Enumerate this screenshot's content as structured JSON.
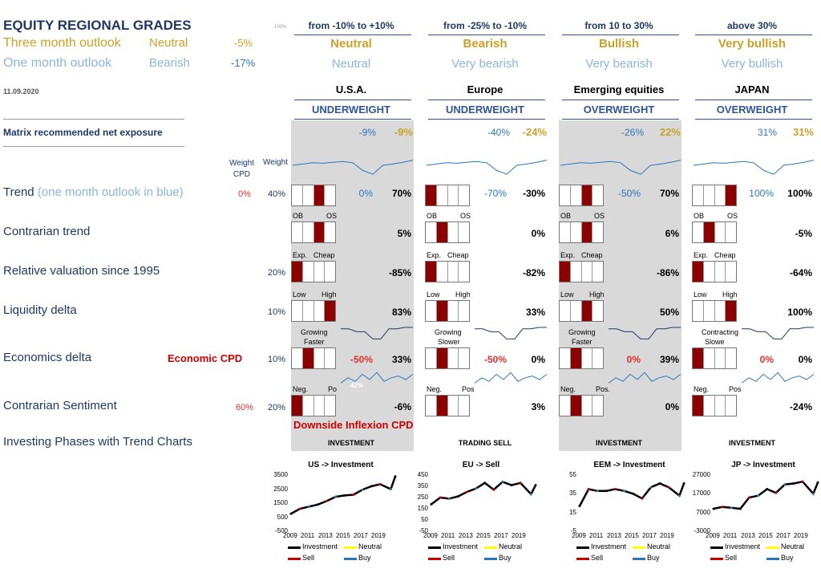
{
  "title": "EQUITY REGIONAL GRADES",
  "date": "11.09.2020",
  "tiny_pct": "100%",
  "outlook": {
    "three": {
      "label": "Three month outlook",
      "grade": "Neutral",
      "value": "-5%"
    },
    "one": {
      "label": "One month outlook",
      "grade": "Bearish",
      "value": "-17%"
    }
  },
  "matrix_label": "Matrix recommended net exposure",
  "col_hdr": {
    "weight_cpd": "Weight\nCPD",
    "weight": "Weight"
  },
  "rows": {
    "trend": {
      "label": "Trend",
      "label_sub": "(one month outlook in blue)",
      "cpd": "0%",
      "weight": "40%"
    },
    "contrarian_trend": {
      "label": "Contrarian trend"
    },
    "valuation": {
      "label": "Relative valuation since 1995",
      "weight": "20%"
    },
    "liquidity": {
      "label": "Liquidity delta",
      "weight": "10%"
    },
    "economics": {
      "label": "Economics delta",
      "cpd_label": "Economic CPD",
      "weight": "10%"
    },
    "sentiment": {
      "label": "Contrarian Sentiment",
      "cpd": "60%",
      "weight": "20%"
    },
    "phases": {
      "label": "Investing Phases with Trend Charts"
    }
  },
  "downside_label": "Downside Inflexion CPD",
  "range_headers": [
    "from -10% to +10%",
    "from -25% to -10%",
    "from 10 to 30%",
    "above 30%"
  ],
  "range_three": [
    "Neutral",
    "Bearish",
    "Bullish",
    "Very bullish"
  ],
  "range_one": [
    "Neutral",
    "Very bearish",
    "Very bearish",
    "Very bullish"
  ],
  "legend": {
    "investment": "Investment",
    "neutral": "Neutral",
    "sell": "Sell",
    "buy": "Buy"
  },
  "colors": {
    "navy": "#1f3864",
    "gold": "#c9a227",
    "light_blue": "#8db3e2",
    "blue": "#2e75b6",
    "red": "#e03030",
    "dark_red": "#8b0000",
    "shade": "#d9d9d9"
  },
  "regions": [
    {
      "name": "U.S.A.",
      "weighting": "UNDERWEIGHT",
      "exposure_one": "-9%",
      "exposure_three": "-9%",
      "trend_one": "0%",
      "trend": "70%",
      "trend_box": 2,
      "ct_labels": [
        "OB",
        "OS"
      ],
      "ct": "5%",
      "ct_box": 2,
      "val_labels": [
        "Exp.",
        "Cheap"
      ],
      "val": "-85%",
      "val_box": 0,
      "liq_labels": [
        "Low",
        "High"
      ],
      "liq": "83%",
      "liq_box": 3,
      "eco_labels": [
        "Growing",
        "Faster"
      ],
      "eco_cpd": "-50%",
      "eco": "33%",
      "eco_box": 1,
      "sent_labels": [
        "Neg.",
        "Po"
      ],
      "sent_chart": "42%",
      "sent": "-6%",
      "sent_box": 0,
      "phase": "INVESTMENT",
      "chart_title": "US -> Investment"
    },
    {
      "name": "Europe",
      "weighting": "UNDERWEIGHT",
      "exposure_one": "-40%",
      "exposure_three": "-24%",
      "trend_one": "-70%",
      "trend": "-30%",
      "trend_box": 0,
      "ct_labels": [
        "OB",
        "OS"
      ],
      "ct": "0%",
      "ct_box": 1,
      "val_labels": [
        "Exp.",
        "Cheap"
      ],
      "val": "-82%",
      "val_box": 0,
      "liq_labels": [
        "Low",
        "High"
      ],
      "liq": "33%",
      "liq_box": 1,
      "eco_labels": [
        "Growing",
        "Slower"
      ],
      "eco_cpd": "-50%",
      "eco": "0%",
      "eco_box": 1,
      "sent_labels": [
        "Neg.",
        "Pos"
      ],
      "sent": "3%",
      "sent_box": 1,
      "phase": "TRADING SELL",
      "chart_title": "EU -> Sell"
    },
    {
      "name": "Emerging equities",
      "weighting": "OVERWEIGHT",
      "exposure_one": "-26%",
      "exposure_three": "22%",
      "trend_one": "-50%",
      "trend": "70%",
      "trend_box": 2,
      "ct_labels": [
        "OB",
        "OS"
      ],
      "ct": "6%",
      "ct_box": 2,
      "val_labels": [
        "Exp.",
        "Cheap"
      ],
      "val": "-86%",
      "val_box": 0,
      "liq_labels": [
        "Low",
        "High"
      ],
      "liq": "50%",
      "liq_box": 2,
      "eco_labels": [
        "Growing",
        "Faster"
      ],
      "eco_cpd": "0%",
      "eco": "39%",
      "eco_box": 1,
      "sent_labels": [
        "Neg.",
        "Pos."
      ],
      "sent": "0%",
      "sent_box": 1,
      "phase": "INVESTMENT",
      "chart_title": "EEM -> Investment"
    },
    {
      "name": "JAPAN",
      "weighting": "OVERWEIGHT",
      "exposure_one": "31%",
      "exposure_three": "31%",
      "trend_one": "100%",
      "trend": "100%",
      "trend_box": 3,
      "ct_labels": [
        "OB",
        "OS"
      ],
      "ct": "-5%",
      "ct_box": 1,
      "val_labels": [
        "Exp.",
        "Cheap"
      ],
      "val": "-64%",
      "val_box": 0,
      "liq_labels": [
        "Low",
        "High"
      ],
      "liq": "100%",
      "liq_box": 3,
      "eco_labels": [
        "Contracting",
        "Slowe"
      ],
      "eco_cpd": "0%",
      "eco": "0%",
      "eco_box": 0,
      "sent_labels": [
        "Neg.",
        "Pos"
      ],
      "sent": "-24%",
      "sent_box": 0,
      "phase": "INVESTMENT",
      "chart_title": "JP -> Investment"
    }
  ],
  "chart_data": [
    {
      "type": "line",
      "title": "US -> Investment",
      "x_ticks": [
        "2009",
        "2011",
        "2013",
        "2015",
        "2017",
        "2019"
      ],
      "y_ticks": [
        3500,
        2500,
        1500,
        500,
        -500
      ],
      "ylim": [
        -500,
        3500
      ],
      "x": [
        2009,
        2010,
        2011,
        2012,
        2013,
        2014,
        2015,
        2016,
        2017,
        2018,
        2019,
        2020.2,
        2020.7
      ],
      "series": [
        {
          "name": "Investment",
          "values": [
            750,
            1100,
            1250,
            1400,
            1650,
            1950,
            2050,
            2100,
            2450,
            2700,
            2850,
            2500,
            3400
          ]
        }
      ],
      "legend": [
        "Investment",
        "Neutral",
        "Sell",
        "Buy"
      ]
    },
    {
      "type": "line",
      "title": "EU -> Sell",
      "x_ticks": [
        "2009",
        "2011",
        "2013",
        "2015",
        "2017",
        "2019"
      ],
      "y_ticks": [
        450,
        350,
        250,
        150,
        50,
        -50
      ],
      "ylim": [
        -50,
        450
      ],
      "x": [
        2009,
        2010,
        2011,
        2012,
        2013,
        2014,
        2015,
        2016,
        2017,
        2018,
        2019,
        2020.2,
        2020.7
      ],
      "series": [
        {
          "name": "Investment",
          "values": [
            190,
            250,
            240,
            260,
            300,
            330,
            380,
            320,
            390,
            360,
            380,
            280,
            360
          ]
        }
      ],
      "legend": [
        "Investment",
        "Neutral",
        "Sell",
        "Buy"
      ]
    },
    {
      "type": "line",
      "title": "EEM -> Investment",
      "x_ticks": [
        "2009",
        "2011",
        "2013",
        "2015",
        "2017",
        "2019"
      ],
      "y_ticks": [
        55,
        35,
        15,
        -5
      ],
      "ylim": [
        -5,
        55
      ],
      "x": [
        2009,
        2010,
        2011,
        2012,
        2013,
        2014,
        2015,
        2016,
        2017,
        2018,
        2019,
        2020.2,
        2020.7
      ],
      "series": [
        {
          "name": "Investment",
          "values": [
            22,
            40,
            38,
            38,
            40,
            38,
            35,
            30,
            42,
            46,
            42,
            33,
            46
          ]
        }
      ],
      "legend": [
        "Investment",
        "Neutral",
        "Sell",
        "Buy"
      ]
    },
    {
      "type": "line",
      "title": "JP -> Investment",
      "x_ticks": [
        "2009",
        "2011",
        "2013",
        "2015",
        "2017",
        "2019"
      ],
      "y_ticks": [
        27000,
        17000,
        7000,
        -3000
      ],
      "ylim": [
        -3000,
        27000
      ],
      "x": [
        2009,
        2010,
        2011,
        2012,
        2013,
        2014,
        2015,
        2016,
        2017,
        2018,
        2019,
        2020.2,
        2020.7
      ],
      "series": [
        {
          "name": "Investment",
          "values": [
            9000,
            10000,
            9500,
            9000,
            15000,
            16000,
            19500,
            17500,
            22000,
            22500,
            23500,
            17000,
            23000
          ]
        }
      ],
      "legend": [
        "Investment",
        "Neutral",
        "Sell",
        "Buy"
      ]
    }
  ]
}
